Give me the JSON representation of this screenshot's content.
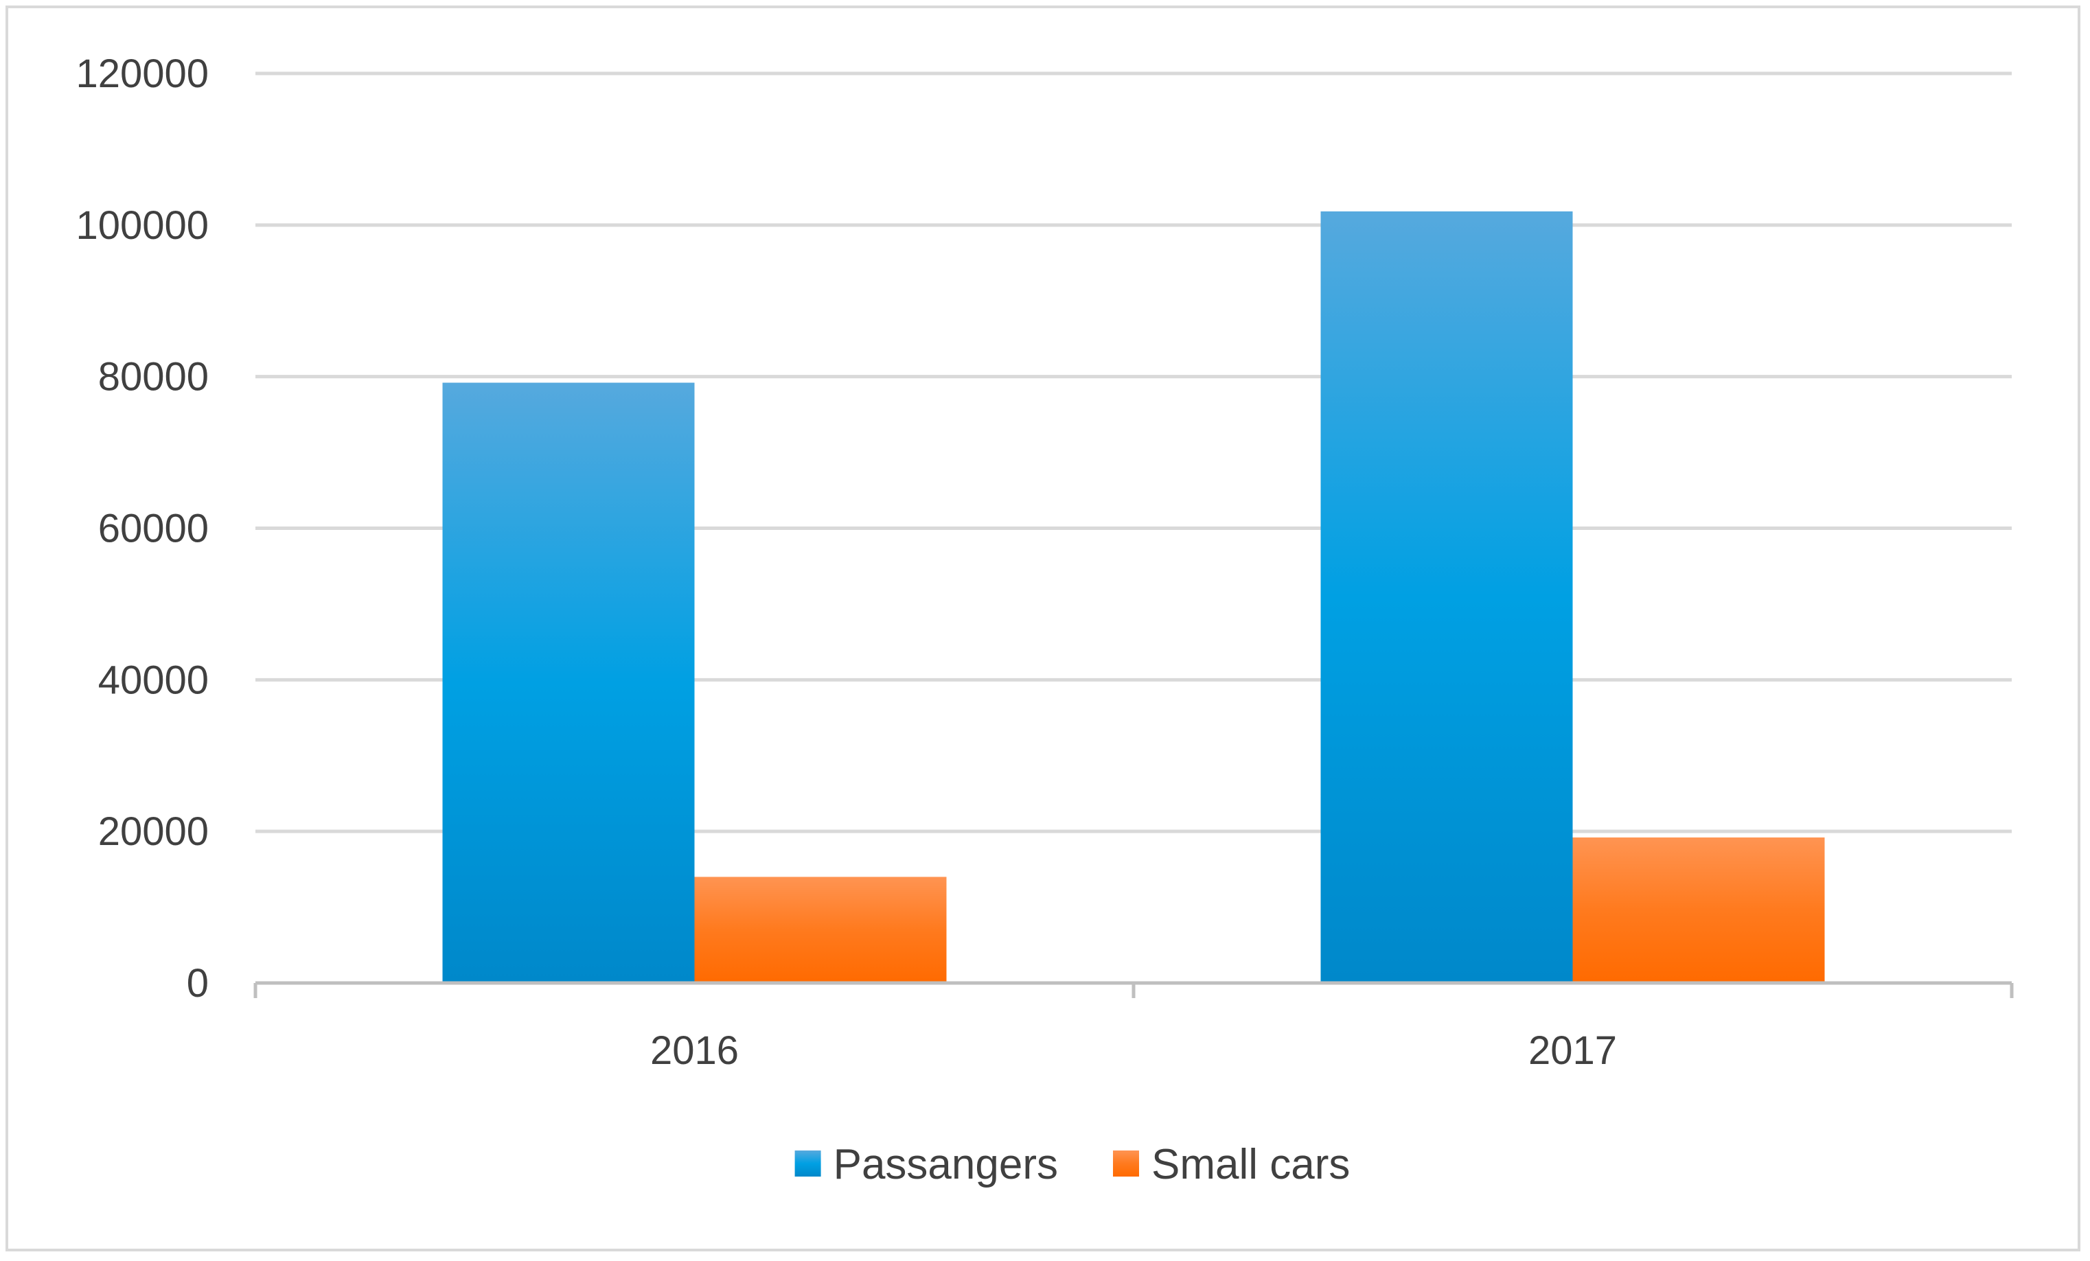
{
  "chart_data": {
    "type": "bar",
    "title": "",
    "xlabel": "",
    "ylabel": "",
    "categories": [
      "2016",
      "2017"
    ],
    "series": [
      {
        "name": "Passangers",
        "values": [
          79200,
          101800
        ],
        "color_top": "#56A9DE",
        "color_mid": "#00A0E3",
        "color_bottom": "#0088CA"
      },
      {
        "name": "Small cars",
        "values": [
          14000,
          19200
        ],
        "color_top": "#FF9452",
        "color_mid": "#FF7A1E",
        "color_bottom": "#FF6A00"
      }
    ],
    "ylim": [
      0,
      120000
    ],
    "yticks": [
      "0",
      "20000",
      "40000",
      "60000",
      "80000",
      "100000",
      "120000"
    ],
    "grid": true,
    "legend_position": "bottom-center"
  },
  "colors": {
    "gridline": "#D9D9D9",
    "axis": "#BFBFBF",
    "text": "#404040",
    "frame": "#D9D9D9"
  }
}
